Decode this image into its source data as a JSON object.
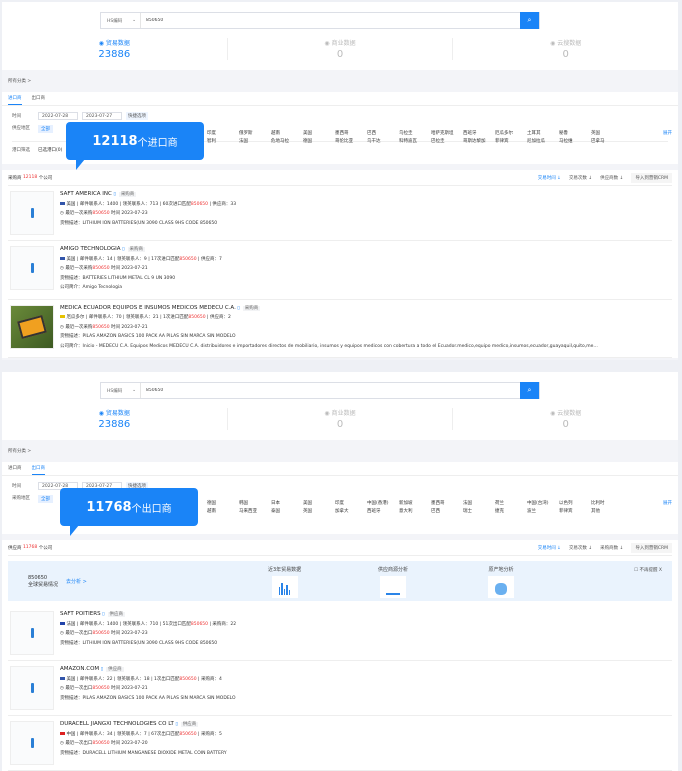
{
  "panels": [
    {
      "search": {
        "select": "HS编码",
        "value": "850650",
        "button_icon": "search-icon"
      },
      "stats": [
        {
          "label": "贸易数据",
          "value": "23886",
          "icon": "globe-icon",
          "active": true
        },
        {
          "label": "商业数据",
          "value": "0",
          "icon": "building-icon"
        },
        {
          "label": "云搜数据",
          "value": "0",
          "icon": "cloud-icon"
        }
      ],
      "crumb": "所有分类 >",
      "tabs": [
        {
          "label": "进口商",
          "active": true
        },
        {
          "label": "出口商"
        }
      ],
      "time_label": "时间",
      "date_from": "2022-07-28",
      "date_to": "2023-07-27",
      "quick": "快捷选项",
      "country_label": "供应地区",
      "all": "全部",
      "countries": [
        "印度",
        "俄罗斯",
        "越南",
        "美国",
        "墨西哥",
        "巴西",
        "乌拉圭",
        "哈萨克斯坦",
        "西班牙",
        "厄瓜多尔",
        "土耳其",
        "秘鲁",
        "英国",
        "智利",
        "法国",
        "危地马拉",
        "德国",
        "哥伦比亚",
        "乌干达",
        "科特迪瓦",
        "巴拉圭",
        "哥斯达黎加",
        "菲律宾",
        "尼加拉瓜",
        "马拉维",
        "巴拿马"
      ],
      "expand": "展开",
      "port_label": "港口筛选",
      "port_value": "已选港口(0)",
      "bubble_num": "12118",
      "bubble_text": "个进口商",
      "result_prefix": "采购商",
      "result_count": "12118",
      "result_suffix": "个公司",
      "sort": [
        "交易时间",
        "交易次数",
        "供应商数"
      ],
      "crm": "导入到营销CRM",
      "cards": [
        {
          "name": "SAFT AMERICA INC",
          "tag": "采购商",
          "flag": "#3355aa",
          "country": "美国",
          "l1": "邮件联系人：1400 | 领英联系人：713 | 60次进口匹配",
          "hs": "850650",
          "extra": "| 供应商：33",
          "last": "最近一次采购",
          "date": "时间 2023-07-23",
          "desc": "货物描述：LITHIUM ION BATTERIES(UN 3090 CLASS 9HS CODE 850650"
        },
        {
          "name": "AMIGO TECHNOLOGIA",
          "tag": "采购商",
          "flag": "#3355aa",
          "country": "美国",
          "l1": "邮件联系人：14 | 领英联系人：9 | 17次进口匹配",
          "hs": "850650",
          "extra": "| 供应商：7",
          "last": "最近一次采购",
          "date": "时间 2023-07-21",
          "desc": "货物描述：BATTERIES LITHIUM METAL CL 9 UN 3090",
          "intro": "公司简介：Amigo Tecnologia"
        },
        {
          "name": "MEDICA ECUADOR EQUIPOS E INSUMOS MEDICOS MEDECU C.A.",
          "tag": "采购商",
          "flag": "#e6c200",
          "country": "厄瓜多尔",
          "l1": "邮件联系人：70 | 领英联系人：21 | 1次进口匹配",
          "hs": "850650",
          "extra": "| 供应商：2",
          "last": "最近一次采购",
          "date": "时间 2023-07-21",
          "desc": "货物描述：PILAS AMAZON BASICS 100 PACK AA PILAS SIN MARCA SIN MODELO",
          "intro": "公司简介：Inicio - MEDECU C.A. Equipos Medicos MEDECU C.A. distribuidores e importadores directos de mobiliario, insumos y equipos medicos con cobertura a todo el Ecuador.medico,equipo medico,insumos,ecuador,guayaquil,quito,medicina,mobiliario,insumos,p...",
          "photo": true
        }
      ]
    },
    {
      "search": {
        "select": "HS编码",
        "value": "850650",
        "button_icon": "search-icon"
      },
      "stats": [
        {
          "label": "贸易数据",
          "value": "23886",
          "icon": "globe-icon",
          "active": true
        },
        {
          "label": "商业数据",
          "value": "0",
          "icon": "building-icon"
        },
        {
          "label": "云搜数据",
          "value": "0",
          "icon": "cloud-icon"
        }
      ],
      "crumb": "所有分类 >",
      "tabs": [
        {
          "label": "进口商"
        },
        {
          "label": "出口商",
          "active": true
        }
      ],
      "time_label": "时间",
      "date_from": "2022-07-28",
      "date_to": "2023-07-27",
      "quick": "快捷选项",
      "country_label": "采购地区",
      "all": "全部",
      "countries": [
        "德国",
        "韩国",
        "日本",
        "美国",
        "印度",
        "中国(香港)",
        "新加坡",
        "墨西哥",
        "法国",
        "荷兰",
        "中国(台湾)",
        "以色列",
        "比利时",
        "越南",
        "马来西亚",
        "泰国",
        "英国",
        "加拿大",
        "西班牙",
        "意大利",
        "巴西",
        "瑞士",
        "捷克",
        "波兰",
        "菲律宾",
        "其他"
      ],
      "expand": "展开",
      "bubble_num": "11768",
      "bubble_text": "个出口商",
      "result_prefix": "供应商",
      "result_count": "11768",
      "result_suffix": "个公司",
      "sort": [
        "交易时间",
        "交易次数",
        "采购商数"
      ],
      "crm": "导入到营销CRM",
      "analysis": {
        "hs": "850650",
        "title": "全球贸易情况",
        "go": "去分析 >",
        "cols": [
          "近3年贸易数据",
          "供应商源分析",
          "原产地分析"
        ],
        "no_remind": "不再提醒",
        "close": "X"
      },
      "cards": [
        {
          "name": "SAFT POITIERS",
          "tag": "供应商",
          "flag": "#2244aa",
          "country": "法国",
          "l1": "邮件联系人：1400 | 领英联系人：710 | 51次出口匹配",
          "hs": "850650",
          "extra": "| 采购商：22",
          "last": "最近一次出口",
          "date": "时间 2023-07-23",
          "desc": "货物描述：LITHIUM ION BATTERIES(UN 3090 CLASS 9HS CODE 850650"
        },
        {
          "name": "AMAZON.COM",
          "tag": "供应商",
          "flag": "#3355aa",
          "country": "美国",
          "l1": "邮件联系人：22 | 领英联系人：18 | 1次出口匹配",
          "hs": "850650",
          "extra": "| 采购商：4",
          "last": "最近一次出口",
          "date": "时间 2023-07-21",
          "desc": "货物描述：PILAS AMAZON BASICS 100 PACK AA PILAS SIN MARCA SIN MODELO"
        },
        {
          "name": "DURACELL JIANGXI TECHNOLOGIES CO LT",
          "tag": "供应商",
          "flag": "#dd2222",
          "country": "中国",
          "l1": "邮件联系人：34 | 领英联系人：7 | 67次出口匹配",
          "hs": "850650",
          "extra": "| 采购商：5",
          "last": "最近一次出口",
          "date": "时间 2023-07-20",
          "desc": "货物描述：DURACELL LITHIUM MANGANESE DIOXIDE METAL COIN BATTERY"
        }
      ]
    }
  ],
  "colors": {
    "accent": "#1a84f7",
    "highlight": "#e33333"
  }
}
